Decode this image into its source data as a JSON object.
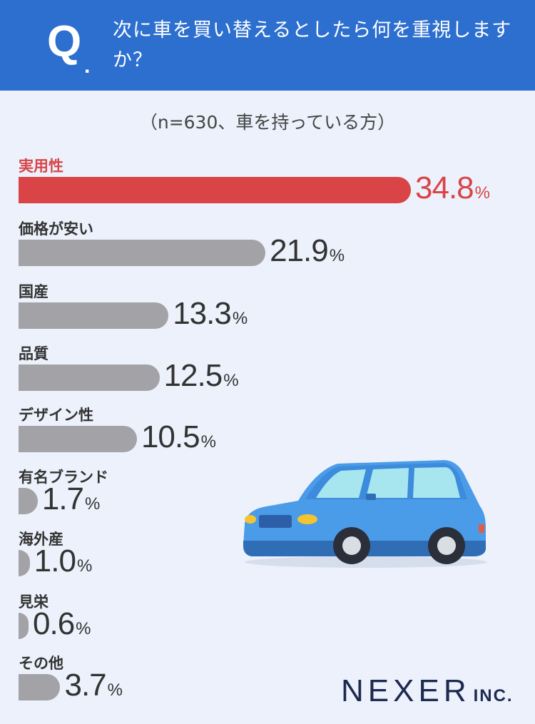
{
  "header": {
    "q_mark": "Q",
    "q_dot": ".",
    "question": "次に車を買い替えるとしたら何を重視しますか？"
  },
  "sample_note": "（n=630、車を持っている方）",
  "colors": {
    "header_bg": "#2d6fcf",
    "highlight": "#d94447",
    "bar": "#a3a3a7",
    "page_bg": "#ecf1fb"
  },
  "chart_data": {
    "type": "bar",
    "orientation": "horizontal",
    "unit": "%",
    "highlight_index": 0,
    "categories": [
      "実用性",
      "価格が安い",
      "国産",
      "品質",
      "デザイン性",
      "有名ブランド",
      "海外産",
      "見栄",
      "その他"
    ],
    "values": [
      34.8,
      21.9,
      13.3,
      12.5,
      10.5,
      1.7,
      1.0,
      0.6,
      3.7
    ],
    "value_labels": [
      "34.8",
      "21.9",
      "13.3",
      "12.5",
      "10.5",
      "1.7",
      "1.0",
      "0.6",
      "3.7"
    ]
  },
  "logo": {
    "main": "NEXER",
    "sub": "INC."
  },
  "illustration": "car-illustration"
}
